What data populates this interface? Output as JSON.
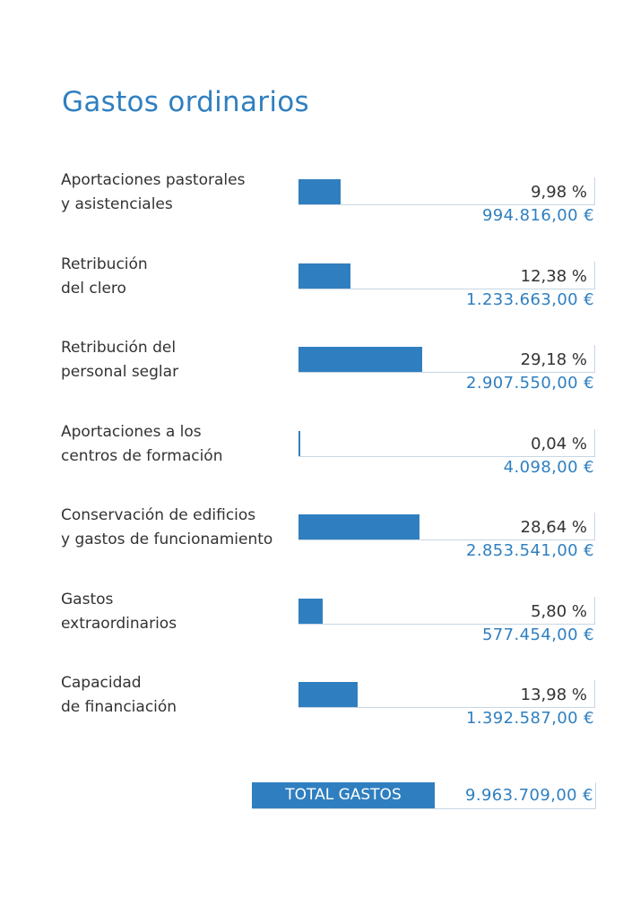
{
  "title": "Gastos ordinarios",
  "chart_data": {
    "type": "bar",
    "orientation": "horizontal",
    "title": "Gastos ordinarios",
    "categories": [
      "Aportaciones pastorales\ny asistenciales",
      "Retribución\ndel clero",
      "Retribución del\npersonal seglar",
      "Aportaciones a los\ncentros de formación",
      "Conservación de edificios\ny gastos de funcionamiento",
      "Gastos\nextraordinarios",
      "Capacidad\nde financiación"
    ],
    "values": [
      9.98,
      12.38,
      29.18,
      0.04,
      28.64,
      5.8,
      13.98
    ],
    "value_labels": [
      "9,98 %",
      "12,38 %",
      "29,18 %",
      "0,04 %",
      "28,64 %",
      "5,80 %",
      "13,98 %"
    ],
    "amounts": [
      "994.816,00 €",
      "1.233.663,00 €",
      "2.907.550,00 €",
      "4.098,00 €",
      "2.853.541,00 €",
      "577.454,00 €",
      "1.392.587,00 €"
    ],
    "xlim": [
      0,
      70
    ],
    "color": "#2f7fc0",
    "grid": false
  },
  "total": {
    "label": "TOTAL GASTOS",
    "value": "9.963.709,00 €"
  },
  "colors": {
    "accent": "#2f7fc0",
    "text": "#333333",
    "rule": "#c7d6e4"
  }
}
